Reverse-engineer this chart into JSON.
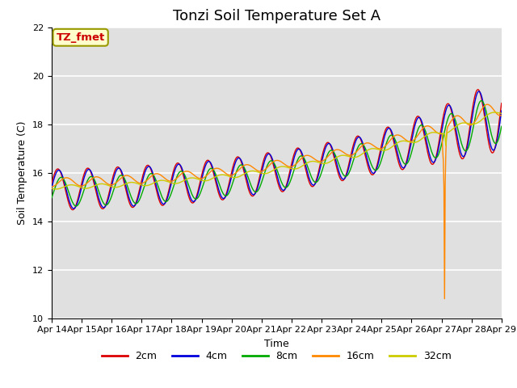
{
  "title": "Tonzi Soil Temperature Set A",
  "ylabel": "Soil Temperature (C)",
  "xlabel": "Time",
  "ylim": [
    10,
    22
  ],
  "annotation": "TZ_fmet",
  "series_labels": [
    "2cm",
    "4cm",
    "8cm",
    "16cm",
    "32cm"
  ],
  "series_colors": [
    "#dd0000",
    "#0000dd",
    "#00aa00",
    "#ff8800",
    "#cccc00"
  ],
  "x_tick_labels": [
    "Apr 14",
    "Apr 15",
    "Apr 16",
    "Apr 17",
    "Apr 18",
    "Apr 19",
    "Apr 20",
    "Apr 21",
    "Apr 22",
    "Apr 23",
    "Apr 24",
    "Apr 25",
    "Apr 26",
    "Apr 27",
    "Apr 28",
    "Apr 29"
  ],
  "background_color": "#e0e0e0",
  "grid_color": "#ffffff",
  "title_fontsize": 13,
  "label_fontsize": 9,
  "tick_fontsize": 8,
  "legend_fontsize": 9
}
